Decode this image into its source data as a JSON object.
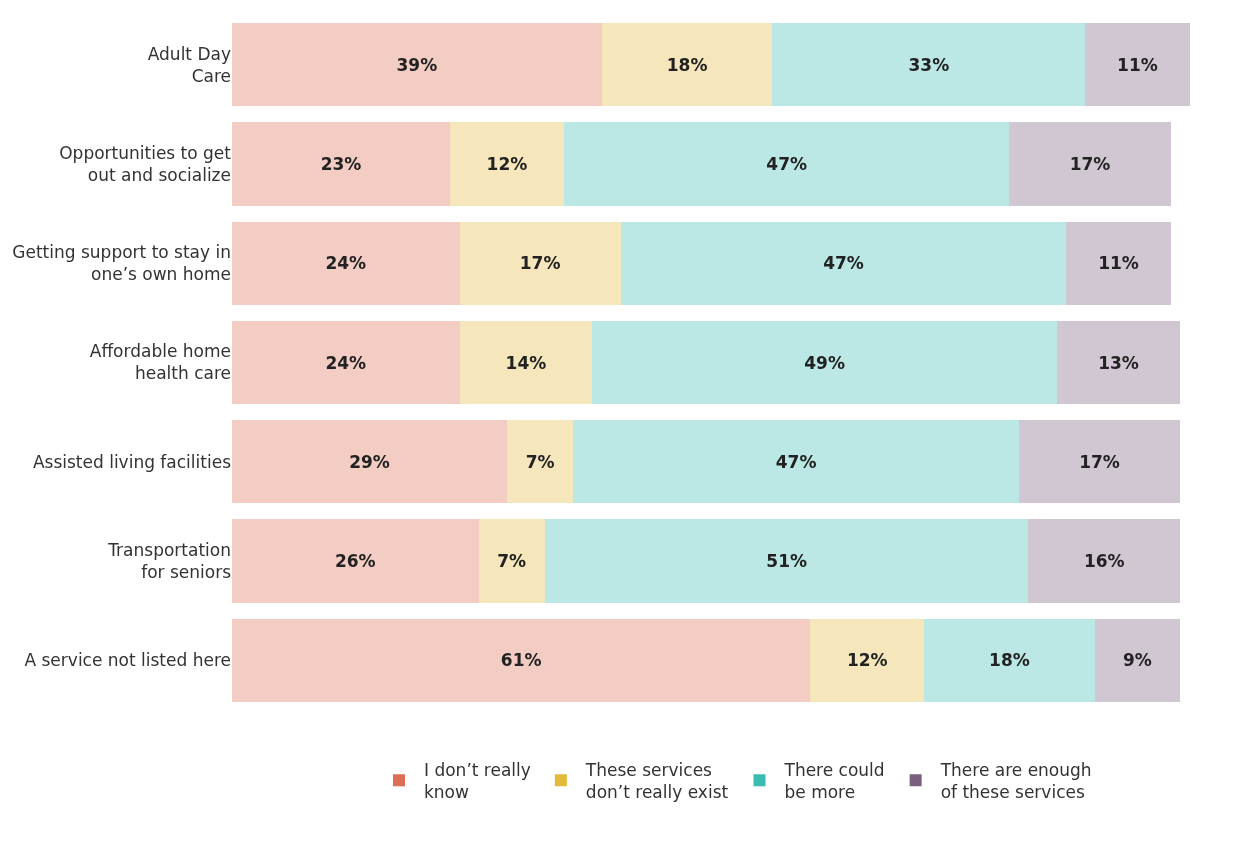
{
  "chart_data": {
    "type": "bar",
    "orientation": "horizontal",
    "stacked": true,
    "legend": "bottom",
    "tick_labels": "y",
    "categories": [
      "Adult Day\nCare",
      "Opportunities to get\nout and socialize",
      "Getting support to stay in\none’s own home",
      "Affordable home\nhealth care",
      "Assisted living facilities",
      "Transportation\nfor seniors",
      "A service not listed here"
    ],
    "series": [
      {
        "name": "I don’t really\nknow",
        "color": "#dd6e55",
        "values": [
          39,
          23,
          24,
          24,
          29,
          26,
          61
        ],
        "value_labels": [
          "39%",
          "23%",
          "24%",
          "24%",
          "29%",
          "26%",
          "61%"
        ]
      },
      {
        "name": "These services\ndon’t really exist",
        "color": "#e2b93b",
        "values": [
          18,
          12,
          17,
          14,
          7,
          7,
          12
        ],
        "value_labels": [
          "18%",
          "12%",
          "17%",
          "14%",
          "7%",
          "7%",
          "12%"
        ]
      },
      {
        "name": "There could\nbe more",
        "color": "#3bbcb2",
        "values": [
          33,
          47,
          47,
          49,
          47,
          51,
          18
        ],
        "value_labels": [
          "33%",
          "47%",
          "47%",
          "49%",
          "47%",
          "51%",
          "18%"
        ]
      },
      {
        "name": "There are enough\nof these services",
        "color": "#7a5f7e",
        "values": [
          11,
          17,
          11,
          13,
          17,
          16,
          9
        ],
        "value_labels": [
          "11%",
          "17%",
          "11%",
          "13%",
          "17%",
          "16%",
          "9%"
        ]
      }
    ]
  }
}
